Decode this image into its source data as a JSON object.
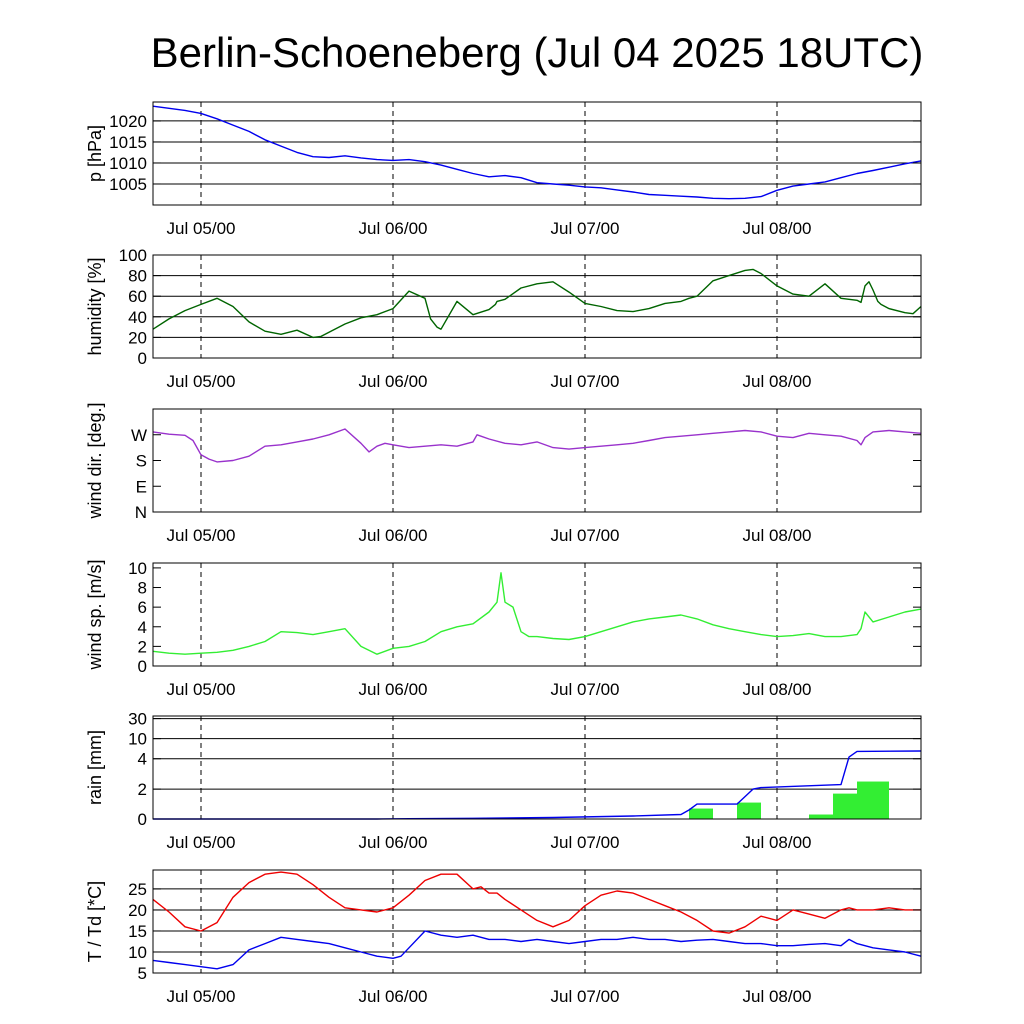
{
  "title": "Berlin-Schoeneberg (Jul 04 2025 18UTC)",
  "chart_data": [
    {
      "type": "line",
      "ylabel": "p [hPa]",
      "x_ticks": [
        "Jul 05/00",
        "Jul 06/00",
        "Jul 07/00",
        "Jul 08/00"
      ],
      "ylim": [
        1000,
        1024.5
      ],
      "yticks": [
        1005,
        1010,
        1015,
        1020
      ],
      "gridlines": [
        1005,
        1010,
        1015,
        1020
      ],
      "series": [
        {
          "color": "#0000ee",
          "x": [
            0,
            2,
            4,
            6,
            8,
            10,
            12,
            14,
            16,
            18,
            20,
            22,
            24,
            26,
            28,
            30,
            32,
            34,
            36,
            38,
            40,
            42,
            44,
            46,
            48,
            50,
            52,
            54,
            56,
            58,
            60,
            62,
            64,
            66,
            68,
            70,
            72,
            74,
            76,
            78,
            80,
            82,
            84,
            86,
            88,
            90,
            92,
            94,
            96
          ],
          "values": [
            1023.5,
            1023,
            1022.5,
            1021.8,
            1020.5,
            1019,
            1017.5,
            1015.5,
            1014,
            1012.5,
            1011.5,
            1011.3,
            1011.7,
            1011.2,
            1010.8,
            1010.6,
            1010.8,
            1010.3,
            1009.5,
            1008.5,
            1007.5,
            1006.7,
            1007,
            1006.5,
            1005.3,
            1005,
            1004.7,
            1004.3,
            1004.1,
            1003.6,
            1003.1,
            1002.5,
            1002.3,
            1002.1,
            1001.9,
            1001.6,
            1001.5,
            1001.6,
            1002,
            1003.5,
            1004.5,
            1005,
            1005.5,
            1006.5,
            1007.5,
            1008.2,
            1009,
            1009.8,
            1010.5
          ]
        }
      ]
    },
    {
      "type": "line",
      "ylabel": "humidity [%]",
      "x_ticks": [
        "Jul 05/00",
        "Jul 06/00",
        "Jul 07/00",
        "Jul 08/00"
      ],
      "ylim": [
        0,
        100
      ],
      "yticks": [
        0,
        20,
        40,
        60,
        80,
        100
      ],
      "gridlines": [
        20,
        40,
        60,
        80
      ],
      "series": [
        {
          "color": "#006400",
          "x": [
            0,
            2,
            4,
            6,
            8,
            10,
            12,
            14,
            16,
            18,
            20,
            21,
            22,
            24,
            26,
            28,
            30,
            32,
            34,
            34.7,
            35.5,
            36,
            38,
            40,
            42,
            42.8,
            43,
            44,
            46,
            48,
            50,
            52,
            54,
            56,
            58,
            60,
            62,
            64,
            66,
            67,
            68,
            70,
            72,
            74,
            75,
            76,
            78,
            80,
            82,
            84,
            86,
            88,
            88.5,
            89,
            89.5,
            90,
            90.6,
            91,
            92,
            94,
            95,
            96
          ],
          "values": [
            28,
            38,
            46,
            52,
            58,
            50,
            35,
            26,
            23,
            27,
            20,
            21,
            25,
            33,
            39,
            42,
            48,
            65,
            58,
            38,
            30,
            28,
            55,
            42,
            47,
            52,
            55,
            57,
            68,
            72,
            74,
            64,
            53,
            50,
            46,
            45,
            48,
            53,
            55,
            58,
            60,
            75,
            80,
            85,
            86,
            82,
            70,
            62,
            60,
            72,
            58,
            56,
            54,
            70,
            74,
            66,
            55,
            52,
            48,
            44,
            43,
            50
          ]
        }
      ]
    },
    {
      "type": "line",
      "ylabel": "wind dir. [deg.]",
      "x_ticks": [
        "Jul 05/00",
        "Jul 06/00",
        "Jul 07/00",
        "Jul 08/00"
      ],
      "ylim": [
        0,
        360
      ],
      "yticks": [
        0,
        90,
        180,
        270
      ],
      "ytick_labels": [
        "N",
        "E",
        "S",
        "W"
      ],
      "series": [
        {
          "color": "#9932cc",
          "x": [
            0,
            2,
            4,
            5,
            6,
            7,
            8,
            10,
            12,
            14,
            16,
            18,
            20,
            22,
            24,
            26,
            27,
            28,
            29,
            30,
            32,
            34,
            36,
            38,
            40,
            40.5,
            41,
            42,
            44,
            46,
            48,
            50,
            52,
            54,
            56,
            58,
            60,
            62,
            64,
            66,
            68,
            70,
            72,
            74,
            76,
            78,
            80,
            82,
            84,
            86,
            88,
            88.5,
            89,
            90,
            92,
            94,
            96
          ],
          "values": [
            280,
            272,
            268,
            250,
            200,
            185,
            175,
            180,
            195,
            230,
            235,
            245,
            255,
            270,
            290,
            240,
            210,
            230,
            240,
            235,
            225,
            230,
            235,
            230,
            245,
            270,
            265,
            255,
            240,
            235,
            245,
            225,
            220,
            225,
            230,
            235,
            240,
            250,
            260,
            265,
            270,
            275,
            280,
            285,
            280,
            265,
            260,
            275,
            270,
            265,
            250,
            235,
            260,
            280,
            285,
            280,
            275
          ]
        }
      ]
    },
    {
      "type": "line",
      "ylabel": "wind sp. [m/s]",
      "x_ticks": [
        "Jul 05/00",
        "Jul 06/00",
        "Jul 07/00",
        "Jul 08/00"
      ],
      "ylim": [
        0,
        10.5
      ],
      "yticks": [
        0,
        2,
        4,
        6,
        8,
        10
      ],
      "series": [
        {
          "color": "#33ee33",
          "x": [
            0,
            2,
            4,
            6,
            8,
            10,
            12,
            14,
            16,
            18,
            20,
            22,
            24,
            26,
            28,
            30,
            32,
            34,
            36,
            38,
            40,
            42,
            43,
            43.5,
            44,
            45,
            46,
            47,
            48,
            50,
            52,
            54,
            56,
            58,
            60,
            62,
            64,
            66,
            68,
            70,
            72,
            74,
            76,
            78,
            80,
            82,
            84,
            86,
            88,
            88.5,
            89,
            90,
            92,
            94,
            96
          ],
          "values": [
            1.5,
            1.3,
            1.2,
            1.3,
            1.4,
            1.6,
            2,
            2.5,
            3.5,
            3.4,
            3.2,
            3.5,
            3.8,
            2,
            1.2,
            1.8,
            2,
            2.5,
            3.5,
            4,
            4.3,
            5.5,
            6.5,
            9.5,
            6.5,
            6,
            3.5,
            3,
            3,
            2.8,
            2.7,
            3,
            3.5,
            4,
            4.5,
            4.8,
            5,
            5.2,
            4.8,
            4.2,
            3.8,
            3.5,
            3.2,
            3,
            3.1,
            3.3,
            3,
            3,
            3.2,
            3.8,
            5.5,
            4.5,
            5,
            5.5,
            5.8
          ]
        }
      ]
    },
    {
      "type": "bar",
      "ylabel": "rain [mm]",
      "x_ticks": [
        "Jul 05/00",
        "Jul 06/00",
        "Jul 07/00",
        "Jul 08/00"
      ],
      "ytick_labels": [
        "0",
        "2",
        "4",
        "10",
        "30"
      ],
      "gridlines": [
        2,
        4,
        10,
        30
      ],
      "bars": {
        "color": "#33ee33",
        "intervals": [
          [
            67,
            70
          ],
          [
            73,
            76
          ],
          [
            82,
            85
          ],
          [
            85,
            88
          ],
          [
            88,
            92
          ]
        ],
        "values": [
          0.7,
          1.1,
          0.3,
          1.7,
          2.5
        ]
      },
      "series": [
        {
          "color": "#0000ee",
          "x": [
            0,
            28,
            32,
            40,
            50,
            60,
            66,
            67,
            68,
            73,
            74,
            75,
            76,
            86,
            87,
            88,
            96
          ],
          "values": [
            0,
            0,
            0.02,
            0.05,
            0.1,
            0.2,
            0.3,
            0.6,
            1,
            1,
            1.5,
            2,
            2.1,
            2.3,
            4.5,
            6.2,
            6.3
          ]
        }
      ]
    },
    {
      "type": "line",
      "ylabel": "T / Td [*C]",
      "x_ticks": [
        "Jul 05/00",
        "Jul 06/00",
        "Jul 07/00",
        "Jul 08/00"
      ],
      "ylim": [
        5,
        29.5
      ],
      "yticks": [
        5,
        10,
        15,
        20,
        25
      ],
      "gridlines": [
        10,
        15,
        20,
        25
      ],
      "series": [
        {
          "color": "#ee0000",
          "x": [
            0,
            2,
            4,
            6,
            8,
            10,
            12,
            14,
            16,
            18,
            20,
            22,
            24,
            26,
            28,
            30,
            32,
            34,
            36,
            38,
            40,
            41,
            42,
            43,
            44,
            46,
            48,
            50,
            52,
            54,
            56,
            58,
            60,
            62,
            64,
            66,
            68,
            70,
            72,
            74,
            76,
            78,
            80,
            82,
            84,
            86,
            87,
            88,
            89,
            90,
            92,
            94,
            96
          ],
          "values": [
            22.5,
            19.5,
            16,
            15,
            17,
            23,
            26.5,
            28.5,
            29,
            28.5,
            26,
            23,
            20.5,
            20,
            19.5,
            20.5,
            23.5,
            27,
            28.5,
            28.5,
            25,
            25.5,
            24,
            24,
            22.5,
            20,
            17.5,
            16,
            17.5,
            21,
            23.5,
            24.5,
            24,
            22.5,
            21,
            19.5,
            17.5,
            15,
            14.5,
            16,
            18.5,
            17.5,
            20,
            19,
            18,
            20,
            20.5,
            20,
            20,
            20,
            20.5,
            20,
            20
          ]
        },
        {
          "color": "#0000ee",
          "x": [
            0,
            2,
            4,
            6,
            8,
            10,
            12,
            14,
            16,
            18,
            20,
            22,
            24,
            26,
            28,
            30,
            31,
            32,
            34,
            36,
            38,
            40,
            42,
            44,
            46,
            48,
            50,
            52,
            54,
            56,
            58,
            60,
            62,
            64,
            66,
            68,
            70,
            72,
            74,
            76,
            78,
            80,
            82,
            84,
            86,
            87,
            88,
            90,
            92,
            94,
            96
          ],
          "values": [
            8,
            7.5,
            7,
            6.5,
            6,
            7,
            10.5,
            12,
            13.5,
            13,
            12.5,
            12,
            11,
            10,
            9,
            8.5,
            9,
            11,
            15,
            14,
            13.5,
            14,
            13,
            13,
            12.5,
            13,
            12.5,
            12,
            12.5,
            13,
            13,
            13.5,
            13,
            13,
            12.5,
            12.8,
            13,
            12.5,
            12,
            12,
            11.5,
            11.5,
            11.8,
            12,
            11.5,
            13,
            12,
            11,
            10.5,
            10,
            9
          ]
        }
      ]
    }
  ]
}
